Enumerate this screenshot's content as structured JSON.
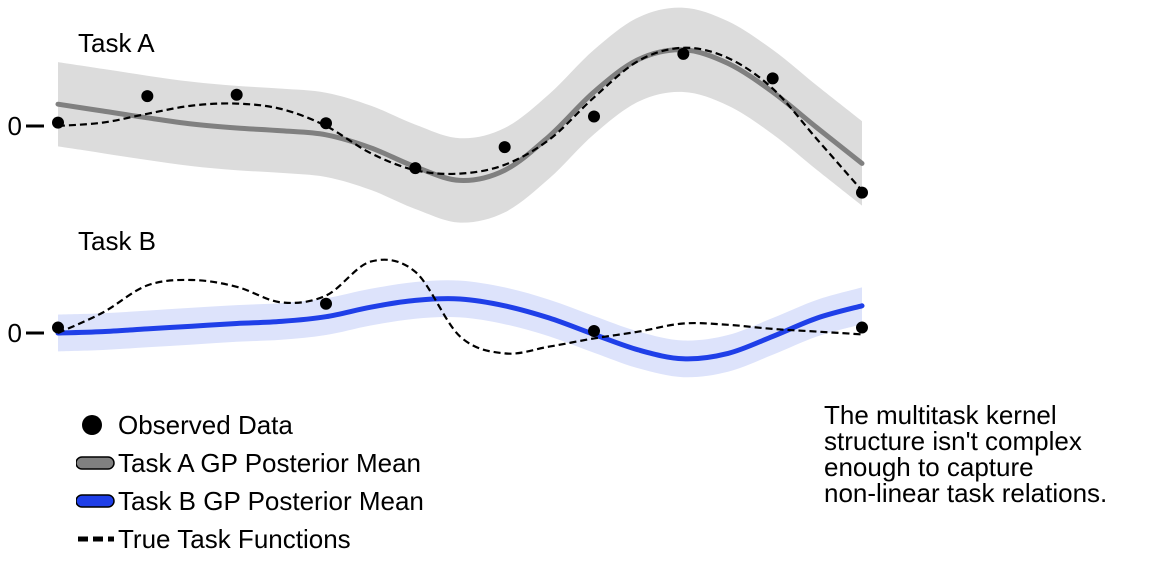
{
  "chart_data": [
    {
      "type": "line",
      "title": "Task A",
      "ytick_label": "0",
      "xlim": [
        0,
        9
      ],
      "ylim": [
        -1.5,
        1.5
      ],
      "observed": {
        "x": [
          0.0,
          1.0,
          2.0,
          3.0,
          4.0,
          5.0,
          6.0,
          7.0,
          8.0,
          9.0
        ],
        "y": [
          0.05,
          0.44,
          0.46,
          0.04,
          -0.62,
          -0.31,
          0.14,
          1.06,
          0.7,
          -0.98
        ]
      },
      "mean": {
        "x": [
          0,
          0.5,
          1,
          1.5,
          2,
          2.5,
          3,
          3.5,
          4,
          4.5,
          5,
          5.5,
          6,
          6.5,
          7,
          7.5,
          8,
          8.5,
          9
        ],
        "y": [
          0.32,
          0.22,
          0.12,
          0.03,
          -0.03,
          -0.07,
          -0.13,
          -0.32,
          -0.6,
          -0.8,
          -0.65,
          -0.15,
          0.5,
          0.98,
          1.12,
          0.92,
          0.5,
          -0.03,
          -0.55
        ]
      },
      "band_halfwidth": 0.62,
      "truth": {
        "x": [
          0,
          0.5,
          1,
          1.5,
          2,
          2.5,
          3,
          3.5,
          4,
          4.5,
          5,
          5.5,
          6,
          6.5,
          7,
          7.5,
          8,
          8.5,
          9
        ],
        "y": [
          0.0,
          0.05,
          0.18,
          0.3,
          0.33,
          0.25,
          0.0,
          -0.4,
          -0.65,
          -0.7,
          -0.57,
          -0.2,
          0.42,
          0.96,
          1.15,
          1.0,
          0.55,
          -0.2,
          -0.95
        ]
      }
    },
    {
      "type": "line",
      "title": "Task B",
      "ytick_label": "0",
      "xlim": [
        0,
        9
      ],
      "ylim": [
        -1.5,
        1.5
      ],
      "observed": {
        "x": [
          0.0,
          3.0,
          6.0,
          9.0
        ],
        "y": [
          0.08,
          0.43,
          0.03,
          0.08
        ]
      },
      "mean": {
        "x": [
          0,
          0.5,
          1,
          1.5,
          2,
          2.5,
          3,
          3.5,
          4,
          4.5,
          5,
          5.5,
          6,
          6.5,
          7,
          7.5,
          8,
          8.5,
          9
        ],
        "y": [
          0.0,
          0.02,
          0.06,
          0.1,
          0.14,
          0.17,
          0.24,
          0.38,
          0.48,
          0.5,
          0.4,
          0.22,
          -0.02,
          -0.25,
          -0.38,
          -0.3,
          -0.05,
          0.22,
          0.4
        ]
      },
      "band_halfwidth": 0.27,
      "truth": {
        "x": [
          0,
          0.5,
          1,
          1.5,
          2,
          2.5,
          3,
          3.5,
          4,
          4.5,
          5,
          5.5,
          6,
          6.5,
          7,
          7.5,
          8,
          8.5,
          9
        ],
        "y": [
          0.0,
          0.3,
          0.7,
          0.78,
          0.68,
          0.45,
          0.55,
          1.05,
          0.9,
          -0.05,
          -0.3,
          -0.2,
          -0.08,
          0.02,
          0.14,
          0.12,
          0.06,
          0.02,
          -0.02
        ]
      }
    }
  ],
  "colors": {
    "task_a": "#808080",
    "task_a_band": "#dcdcdc",
    "task_b": "#1f3fe8",
    "task_b_band": "#dde3fb",
    "truth": "#000000",
    "points": "#000000"
  },
  "legend": [
    {
      "key": "points",
      "label": "Observed Data"
    },
    {
      "key": "task_a",
      "label": "Task A GP Posterior Mean"
    },
    {
      "key": "task_b",
      "label": "Task B GP Posterior Mean"
    },
    {
      "key": "truth",
      "label": "True Task Functions"
    }
  ],
  "note": [
    "The multitask kernel",
    "structure isn't complex",
    "enough to capture",
    "non-linear task relations."
  ]
}
